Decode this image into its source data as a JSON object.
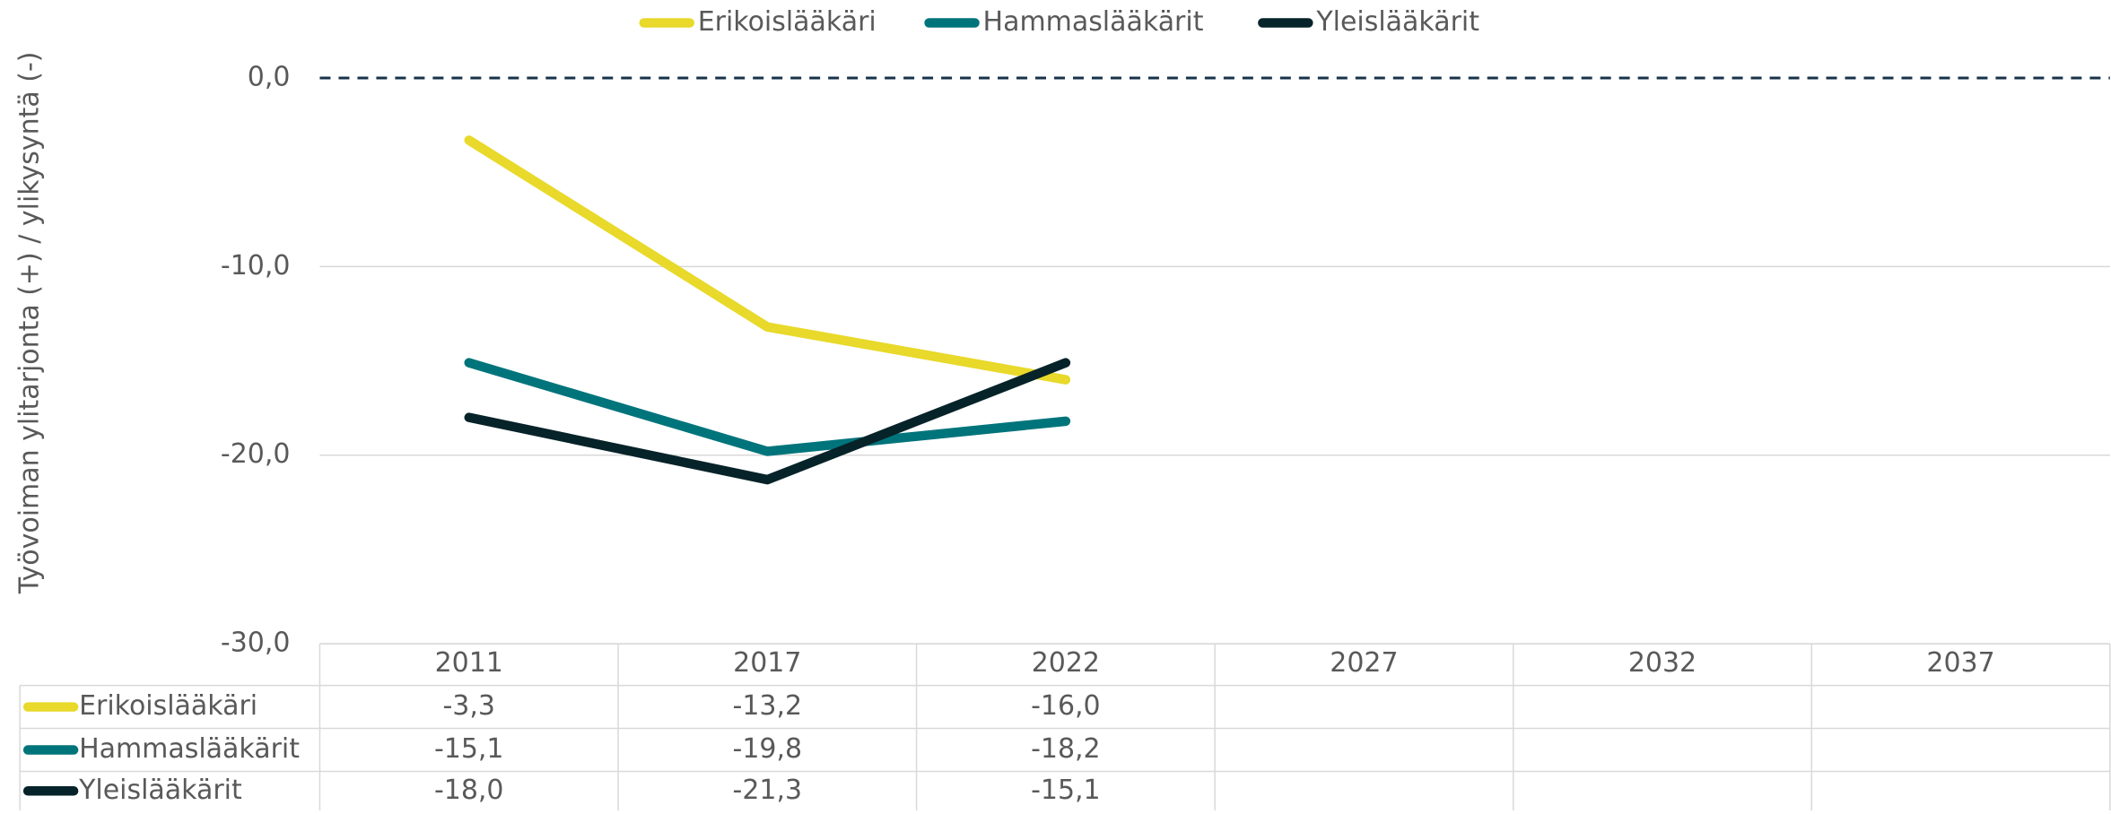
{
  "chart_data": {
    "type": "line",
    "y_label": "Työvoiman ylitarjonta (+) / ylikysyntä (-)",
    "categories": [
      "2011",
      "2017",
      "2022",
      "2027",
      "2032",
      "2037"
    ],
    "series": [
      {
        "name": "Erikoislääkäri",
        "color": "#e8d92a",
        "values": [
          -3.3,
          -13.2,
          -16.0,
          null,
          null,
          null
        ],
        "value_labels": [
          "-3,3",
          "-13,2",
          "-16,0",
          null,
          null,
          null
        ]
      },
      {
        "name": "Hammaslääkärit",
        "color": "#00747b",
        "values": [
          -15.1,
          -19.8,
          -18.2,
          null,
          null,
          null
        ],
        "value_labels": [
          "-15,1",
          "-19,8",
          "-18,2",
          null,
          null,
          null
        ]
      },
      {
        "name": "Yleislääkärit",
        "color": "#062329",
        "values": [
          -18.0,
          -21.3,
          -15.1,
          null,
          null,
          null
        ],
        "value_labels": [
          "-18,0",
          "-21,3",
          "-15,1",
          null,
          null,
          null
        ]
      }
    ],
    "ylim": [
      -30,
      0
    ],
    "yticks": [
      {
        "value": -30,
        "label": "-30,0"
      },
      {
        "value": -20,
        "label": "-20,0"
      },
      {
        "value": -10,
        "label": "-10,0"
      },
      {
        "value": 0,
        "label": "0,0"
      }
    ],
    "grid": true,
    "legend": "top",
    "data_table": true
  }
}
